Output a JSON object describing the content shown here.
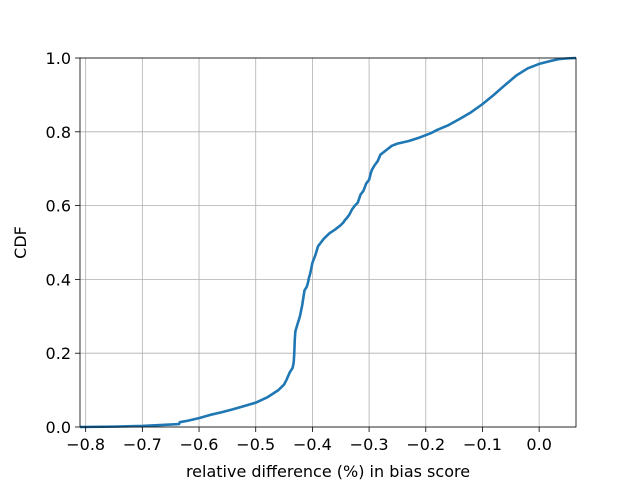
{
  "chart_data": {
    "type": "line",
    "title": "",
    "xlabel": "relative difference (%) in bias score",
    "ylabel": "CDF",
    "xlim": [
      -0.81,
      0.065
    ],
    "ylim": [
      0.0,
      1.0
    ],
    "grid": true,
    "x_ticks": [
      -0.8,
      -0.7,
      -0.6,
      -0.5,
      -0.4,
      -0.3,
      -0.2,
      -0.1,
      0.0
    ],
    "x_tick_labels": [
      "−0.8",
      "−0.7",
      "−0.6",
      "−0.5",
      "−0.4",
      "−0.3",
      "−0.2",
      "−0.1",
      "0.0"
    ],
    "y_ticks": [
      0.0,
      0.2,
      0.4,
      0.6,
      0.8,
      1.0
    ],
    "y_tick_labels": [
      "0.0",
      "0.2",
      "0.4",
      "0.6",
      "0.8",
      "1.0"
    ],
    "colors": {
      "line": "#1f77b4"
    },
    "series": [
      {
        "x": [
          -0.81,
          -0.75,
          -0.7,
          -0.66,
          -0.635,
          -0.634,
          -0.62,
          -0.6,
          -0.58,
          -0.56,
          -0.54,
          -0.52,
          -0.5,
          -0.48,
          -0.46,
          -0.45,
          -0.445,
          -0.44,
          -0.435,
          -0.433,
          -0.432,
          -0.431,
          -0.43,
          -0.428,
          -0.426,
          -0.424,
          -0.422,
          -0.42,
          -0.418,
          -0.416,
          -0.414,
          -0.412,
          -0.41,
          -0.408,
          -0.406,
          -0.404,
          -0.402,
          -0.4,
          -0.395,
          -0.39,
          -0.385,
          -0.38,
          -0.37,
          -0.36,
          -0.35,
          -0.345,
          -0.343,
          -0.34,
          -0.335,
          -0.33,
          -0.325,
          -0.32,
          -0.315,
          -0.31,
          -0.305,
          -0.3,
          -0.297,
          -0.295,
          -0.29,
          -0.285,
          -0.28,
          -0.27,
          -0.26,
          -0.25,
          -0.23,
          -0.21,
          -0.19,
          -0.18,
          -0.16,
          -0.14,
          -0.12,
          -0.1,
          -0.08,
          -0.06,
          -0.04,
          -0.02,
          0.0,
          0.02,
          0.035,
          0.05,
          0.065
        ],
        "y": [
          0.0,
          0.001,
          0.003,
          0.006,
          0.008,
          0.013,
          0.017,
          0.024,
          0.033,
          0.04,
          0.048,
          0.057,
          0.066,
          0.08,
          0.1,
          0.115,
          0.13,
          0.148,
          0.16,
          0.175,
          0.2,
          0.24,
          0.26,
          0.27,
          0.28,
          0.29,
          0.3,
          0.315,
          0.33,
          0.35,
          0.37,
          0.375,
          0.38,
          0.39,
          0.405,
          0.415,
          0.43,
          0.445,
          0.465,
          0.49,
          0.5,
          0.51,
          0.525,
          0.535,
          0.547,
          0.555,
          0.56,
          0.565,
          0.575,
          0.59,
          0.6,
          0.608,
          0.63,
          0.64,
          0.66,
          0.67,
          0.688,
          0.697,
          0.71,
          0.72,
          0.738,
          0.75,
          0.762,
          0.768,
          0.775,
          0.785,
          0.797,
          0.805,
          0.818,
          0.835,
          0.853,
          0.875,
          0.9,
          0.927,
          0.953,
          0.972,
          0.984,
          0.992,
          0.997,
          0.999,
          1.0
        ]
      }
    ]
  }
}
